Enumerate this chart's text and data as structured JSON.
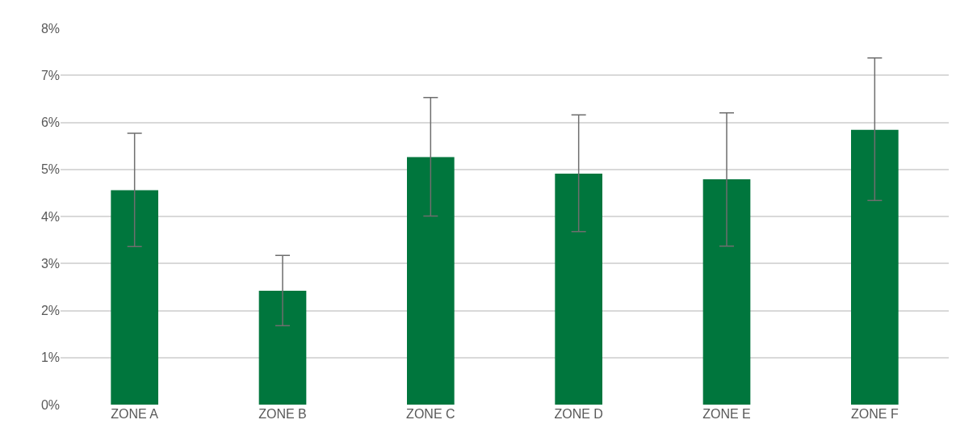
{
  "chart_data": {
    "type": "bar",
    "categories": [
      "ZONE A",
      "ZONE B",
      "ZONE C",
      "ZONE D",
      "ZONE E",
      "ZONE F"
    ],
    "values": [
      4.56,
      2.42,
      5.26,
      4.91,
      4.79,
      5.84
    ],
    "errors": [
      [
        3.36,
        5.77
      ],
      [
        1.68,
        3.17
      ],
      [
        4.01,
        6.53
      ],
      [
        3.68,
        6.16
      ],
      [
        3.37,
        6.2
      ],
      [
        4.34,
        7.37
      ]
    ],
    "color": "#00763d",
    "ylim": [
      0,
      8
    ],
    "yticks": [
      {
        "value": 0,
        "label": "0%"
      },
      {
        "value": 1,
        "label": "1%"
      },
      {
        "value": 2,
        "label": "2%"
      },
      {
        "value": 3,
        "label": "3%"
      },
      {
        "value": 4,
        "label": "4%"
      },
      {
        "value": 5,
        "label": "5%"
      },
      {
        "value": 6,
        "label": "6%"
      },
      {
        "value": 7,
        "label": "7%"
      },
      {
        "value": 8,
        "label": "8%"
      }
    ],
    "grid": "y",
    "legend": false
  }
}
